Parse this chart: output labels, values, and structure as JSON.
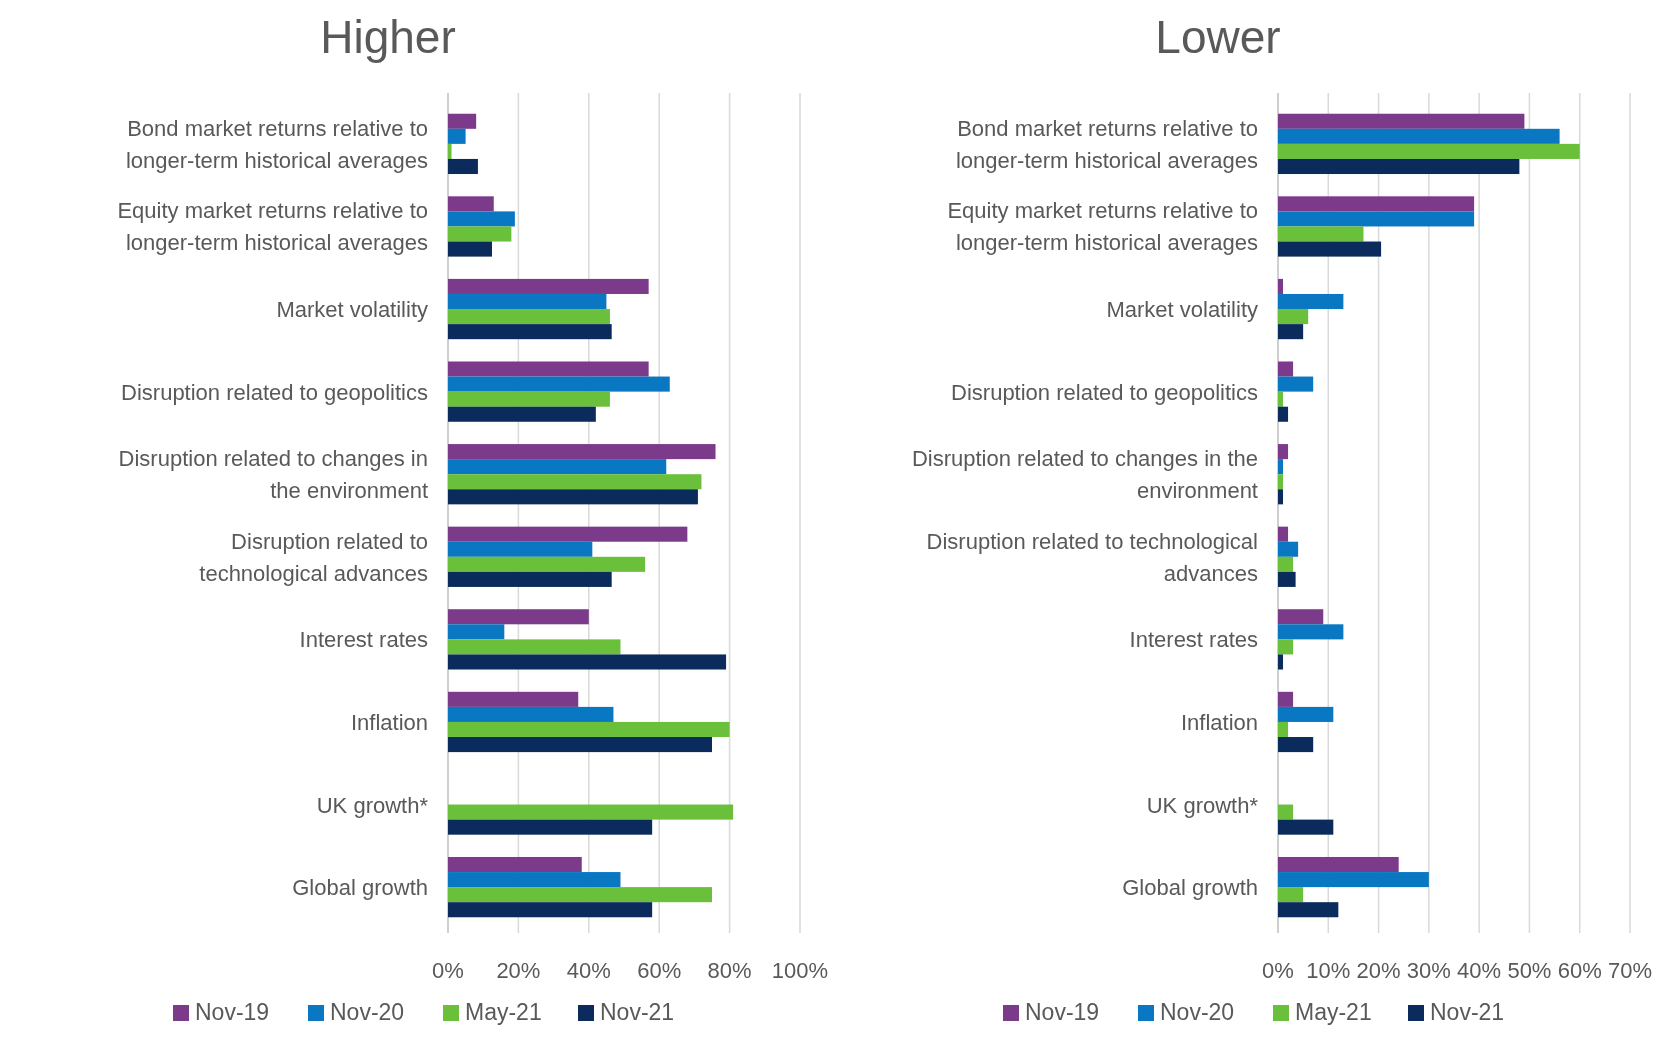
{
  "chart_data": [
    {
      "type": "bar",
      "orientation": "horizontal",
      "title": "Higher",
      "categories": [
        "Bond market returns relative to longer-term historical averages",
        "Equity market returns relative to longer-term historical averages",
        "Market volatility",
        "Disruption related to geopolitics",
        "Disruption related to changes in the environment",
        "Disruption related to technological advances",
        "Interest rates",
        "Inflation",
        "UK growth*",
        "Global growth"
      ],
      "series": [
        {
          "name": "Nov-19",
          "color": "#7b3a8a",
          "values": [
            8,
            13,
            57,
            57,
            76,
            68,
            40,
            37,
            null,
            38
          ]
        },
        {
          "name": "Nov-20",
          "color": "#0a77c2",
          "values": [
            5,
            19,
            45,
            63,
            62,
            41,
            16,
            47,
            null,
            49
          ]
        },
        {
          "name": "May-21",
          "color": "#6abf3b",
          "values": [
            1,
            18,
            46,
            46,
            72,
            56,
            49,
            80,
            81,
            75
          ]
        },
        {
          "name": "Nov-21",
          "color": "#0b2b5c",
          "values": [
            8.5,
            12.5,
            46.5,
            42,
            71,
            46.5,
            79,
            75,
            58,
            58
          ]
        }
      ],
      "xlim": [
        0,
        100
      ],
      "xticks": [
        {
          "value": 0,
          "label": "0%"
        },
        {
          "value": 20,
          "label": "20%"
        },
        {
          "value": 40,
          "label": "40%"
        },
        {
          "value": 60,
          "label": "60%"
        },
        {
          "value": 80,
          "label": "80%"
        },
        {
          "value": 100,
          "label": "100%"
        }
      ],
      "grid": "x",
      "legend": "bottom"
    },
    {
      "type": "bar",
      "orientation": "horizontal",
      "title": "Lower",
      "categories": [
        "Bond market returns relative to longer-term historical averages",
        "Equity market returns relative to longer-term historical averages",
        "Market volatility",
        "Disruption related to geopolitics",
        "Disruption related to changes in the environment",
        "Disruption related to technological advances",
        "Interest rates",
        "Inflation",
        "UK growth*",
        "Global growth"
      ],
      "series": [
        {
          "name": "Nov-19",
          "color": "#7b3a8a",
          "values": [
            49,
            39,
            1,
            3,
            2,
            2,
            9,
            3,
            null,
            24
          ]
        },
        {
          "name": "Nov-20",
          "color": "#0a77c2",
          "values": [
            56,
            39,
            13,
            7,
            1,
            4,
            13,
            11,
            null,
            30
          ]
        },
        {
          "name": "May-21",
          "color": "#6abf3b",
          "values": [
            60,
            17,
            6,
            1,
            1,
            3,
            3,
            2,
            3,
            5
          ]
        },
        {
          "name": "Nov-21",
          "color": "#0b2b5c",
          "values": [
            48,
            20.5,
            5,
            2,
            1,
            3.5,
            1,
            7,
            11,
            12
          ]
        }
      ],
      "xlim": [
        0,
        70
      ],
      "xticks": [
        {
          "value": 0,
          "label": "0%"
        },
        {
          "value": 10,
          "label": "10%"
        },
        {
          "value": 20,
          "label": "20%"
        },
        {
          "value": 30,
          "label": "30%"
        },
        {
          "value": 40,
          "label": "40%"
        },
        {
          "value": 50,
          "label": "50%"
        },
        {
          "value": 60,
          "label": "60%"
        },
        {
          "value": 70,
          "label": "70%"
        }
      ],
      "grid": "x",
      "legend": "bottom"
    }
  ]
}
